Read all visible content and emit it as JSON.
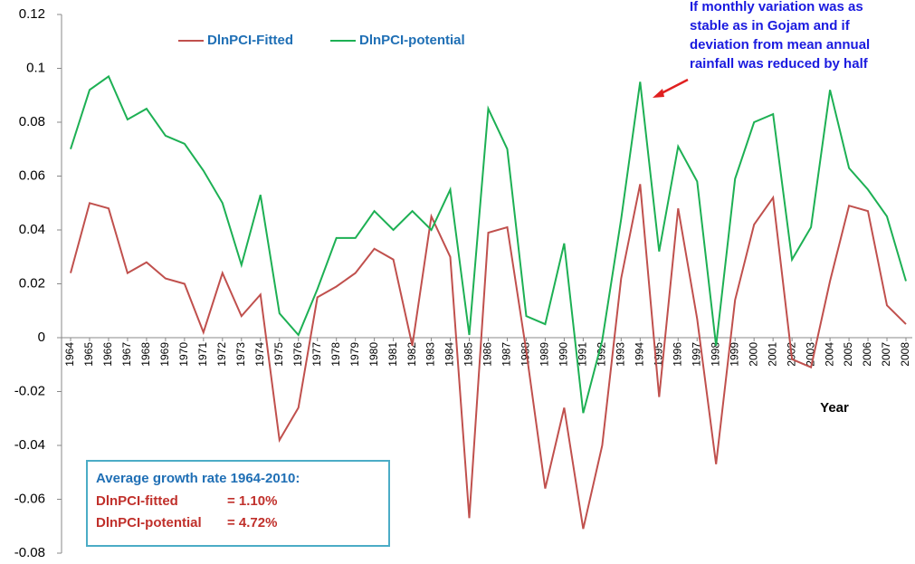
{
  "chart_data": {
    "type": "line",
    "x_label": "Year",
    "annotation": [
      "If monthly variation was as",
      "stable as in Gojam and if",
      "deviation from mean annual",
      "rainfall was reduced by half"
    ],
    "summary": {
      "title": "Average growth rate 1964-2010:",
      "rows": [
        {
          "label": "DlnPCI-fitted",
          "value": "= 1.10%"
        },
        {
          "label": "DlnPCI-potential",
          "value": "= 4.72%"
        }
      ]
    },
    "categories": [
      "1964",
      "1965",
      "1966",
      "1967",
      "1968",
      "1969",
      "1970",
      "1971",
      "1972",
      "1973",
      "1974",
      "1975",
      "1976",
      "1977",
      "1978",
      "1979",
      "1980",
      "1981",
      "1982",
      "1983",
      "1984",
      "1985",
      "1986",
      "1987",
      "1988",
      "1989",
      "1990",
      "1991",
      "1992",
      "1993",
      "1994",
      "1995",
      "1996",
      "1997",
      "1998",
      "1999",
      "2000",
      "2001",
      "2002",
      "2003",
      "2004",
      "2005",
      "2006",
      "2007",
      "2008"
    ],
    "series": [
      {
        "name": "DlnPCI-Fitted",
        "color": "#c0504d",
        "values": [
          0.024,
          0.05,
          0.048,
          0.024,
          0.028,
          0.022,
          0.02,
          0.002,
          0.024,
          0.008,
          0.016,
          -0.038,
          -0.026,
          0.015,
          0.019,
          0.024,
          0.033,
          0.029,
          -0.003,
          0.045,
          0.03,
          -0.067,
          0.039,
          0.041,
          -0.005,
          -0.056,
          -0.026,
          -0.071,
          -0.04,
          0.022,
          0.057,
          -0.022,
          0.048,
          0.007,
          -0.047,
          0.014,
          0.042,
          0.052,
          -0.008,
          -0.011,
          0.021,
          0.049,
          0.047,
          0.012,
          0.005
        ]
      },
      {
        "name": "DlnPCI-potential",
        "color": "#1db054",
        "values": [
          0.07,
          0.092,
          0.097,
          0.081,
          0.085,
          0.075,
          0.072,
          0.062,
          0.05,
          0.027,
          0.053,
          0.009,
          0.001,
          0.018,
          0.037,
          0.037,
          0.047,
          0.04,
          0.047,
          0.04,
          0.055,
          0.001,
          0.085,
          0.07,
          0.008,
          0.005,
          0.035,
          -0.028,
          -0.001,
          0.044,
          0.095,
          0.032,
          0.071,
          0.058,
          -0.003,
          0.059,
          0.08,
          0.083,
          0.029,
          0.041,
          0.092,
          0.063,
          0.055,
          0.045,
          0.021
        ]
      }
    ],
    "ylim": [
      -0.08,
      0.12
    ],
    "yticks": [
      -0.08,
      -0.06,
      -0.04,
      -0.02,
      0,
      0.02,
      0.04,
      0.06,
      0.08,
      0.1,
      0.12
    ],
    "grid": false
  }
}
